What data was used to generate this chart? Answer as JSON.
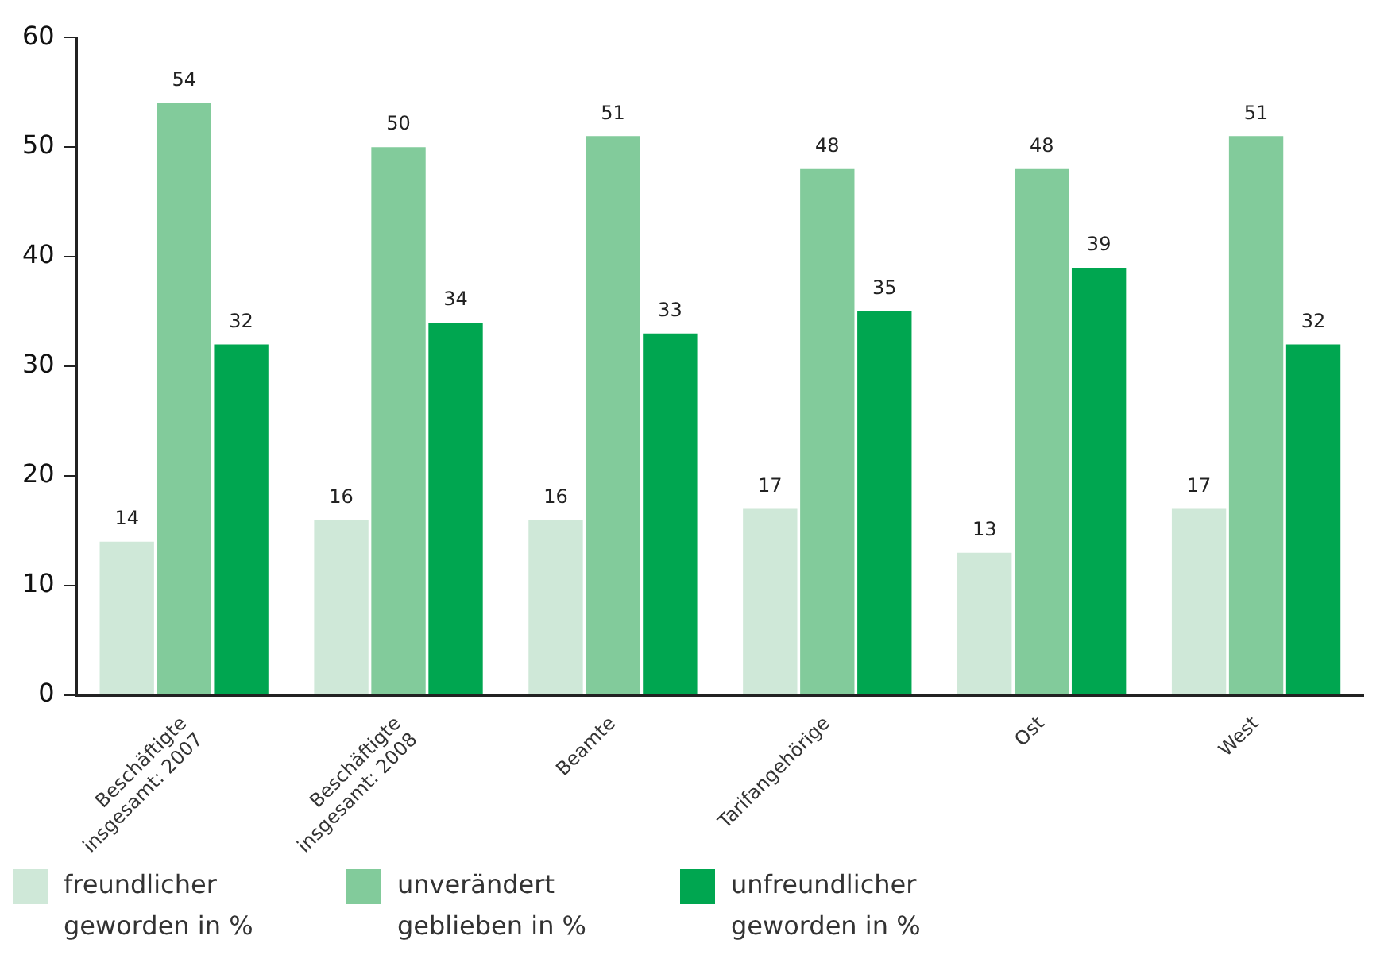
{
  "chart_data": {
    "type": "bar",
    "categories": [
      "Beschäftigte\ninsgesamt: 2007",
      "Beschäftigte\ninsgesamt: 2008",
      "Beamte",
      "Tarifangehörige",
      "Ost",
      "West"
    ],
    "series": [
      {
        "name": "freundlicher geworden in %",
        "color": "#cfe8d8",
        "values": [
          14,
          16,
          16,
          17,
          13,
          17
        ]
      },
      {
        "name": "unverändert geblieben in %",
        "color": "#82cb9b",
        "values": [
          54,
          50,
          51,
          48,
          48,
          51
        ]
      },
      {
        "name": "unfreundlicher geworden in %",
        "color": "#00a650",
        "values": [
          32,
          34,
          33,
          35,
          39,
          32
        ]
      }
    ],
    "ylim": [
      0,
      60
    ],
    "yticks": [
      0,
      10,
      20,
      30,
      40,
      50,
      60
    ],
    "grid": false,
    "legend": "bottom left",
    "data_labels": true
  }
}
